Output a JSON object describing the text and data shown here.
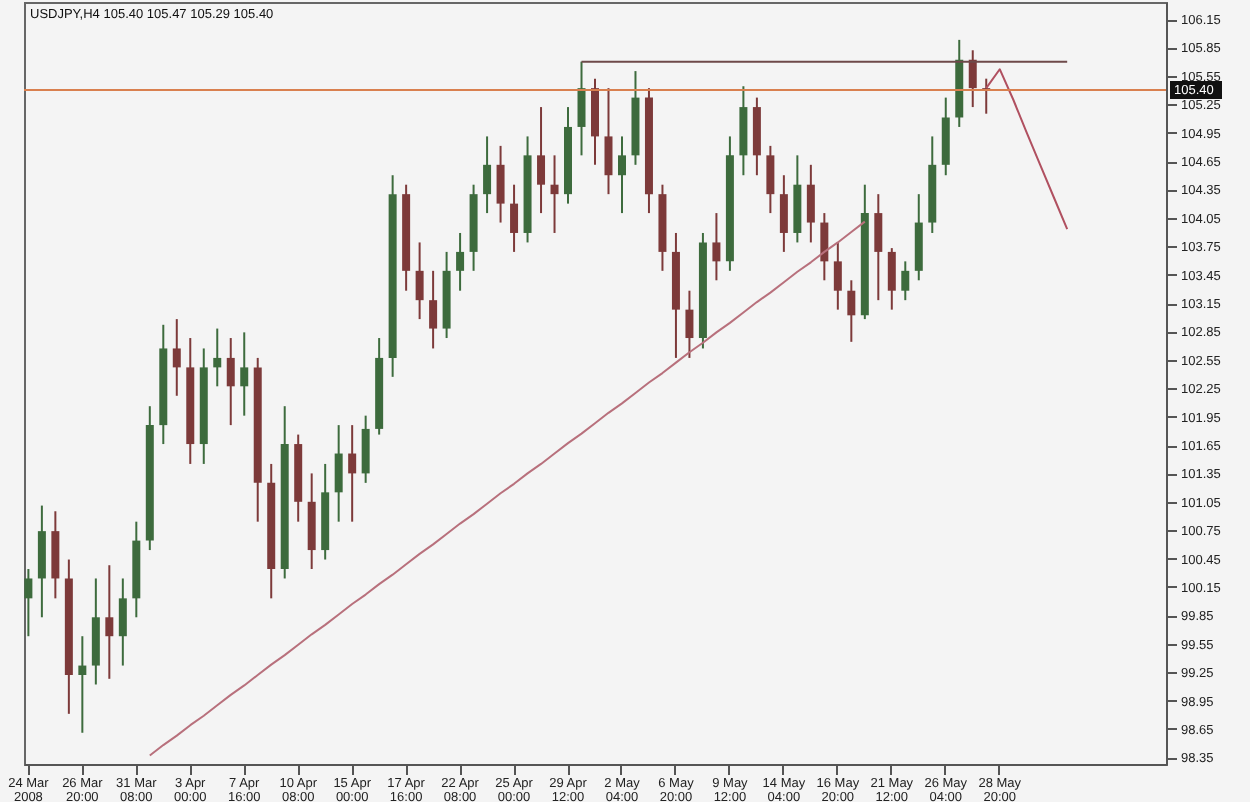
{
  "chart_data": {
    "type": "candlestick",
    "title": "USDJPY,H4  105.40 105.47 105.29 105.40",
    "categories": [
      "24 Mar 2008",
      null,
      null,
      null,
      "26 Mar 20:00",
      null,
      null,
      null,
      "31 Mar 08:00",
      null,
      null,
      null,
      "3 Apr 00:00",
      null,
      null,
      null,
      "7 Apr 16:00",
      null,
      null,
      null,
      "10 Apr 08:00",
      null,
      null,
      null,
      "15 Apr 00:00",
      null,
      null,
      null,
      "17 Apr 16:00",
      null,
      null,
      null,
      "22 Apr 08:00",
      null,
      null,
      null,
      "25 Apr 00:00",
      null,
      null,
      null,
      "29 Apr 12:00",
      null,
      null,
      null,
      "2 May 04:00",
      null,
      null,
      null,
      "6 May 20:00",
      null,
      null,
      null,
      "9 May 12:00",
      null,
      null,
      null,
      "14 May 04:00",
      null,
      null,
      null,
      "16 May 20:00",
      null,
      null,
      null,
      "21 May 12:00",
      null,
      null,
      null,
      "26 May 04:00",
      null,
      null,
      null,
      "28 May 20:00",
      null,
      null,
      null,
      null,
      null,
      null,
      null,
      null,
      null,
      null,
      null,
      null
    ],
    "ohlc": [
      [
        100.03,
        100.34,
        99.63,
        100.24
      ],
      [
        100.24,
        101.01,
        99.83,
        100.74
      ],
      [
        100.74,
        100.95,
        100.03,
        100.24
      ],
      [
        100.24,
        100.44,
        98.81,
        99.22
      ],
      [
        99.22,
        99.63,
        98.61,
        99.32
      ],
      [
        99.32,
        100.24,
        99.12,
        99.83
      ],
      [
        99.83,
        100.38,
        99.18,
        99.63
      ],
      [
        99.63,
        100.24,
        99.32,
        100.03
      ],
      [
        100.03,
        100.84,
        99.83,
        100.64
      ],
      [
        100.64,
        102.06,
        100.54,
        101.86
      ],
      [
        101.86,
        102.92,
        101.66,
        102.67
      ],
      [
        102.67,
        102.98,
        102.17,
        102.47
      ],
      [
        102.47,
        102.78,
        101.45,
        101.66
      ],
      [
        101.66,
        102.67,
        101.45,
        102.47
      ],
      [
        102.47,
        102.88,
        102.27,
        102.57
      ],
      [
        102.57,
        102.78,
        101.86,
        102.27
      ],
      [
        102.27,
        102.84,
        101.96,
        102.47
      ],
      [
        102.47,
        102.57,
        100.84,
        101.25
      ],
      [
        101.25,
        101.45,
        100.03,
        100.34
      ],
      [
        100.34,
        102.06,
        100.24,
        101.66
      ],
      [
        101.66,
        101.76,
        100.84,
        101.05
      ],
      [
        101.05,
        101.35,
        100.34,
        100.54
      ],
      [
        100.54,
        101.45,
        100.44,
        101.15
      ],
      [
        101.15,
        101.86,
        100.84,
        101.56
      ],
      [
        101.56,
        101.86,
        100.84,
        101.35
      ],
      [
        101.35,
        101.96,
        101.25,
        101.82
      ],
      [
        101.82,
        102.78,
        101.76,
        102.57
      ],
      [
        102.57,
        104.5,
        102.37,
        104.3
      ],
      [
        104.3,
        104.4,
        103.28,
        103.49
      ],
      [
        103.49,
        103.79,
        102.98,
        103.18
      ],
      [
        103.18,
        103.49,
        102.67,
        102.88
      ],
      [
        102.88,
        103.69,
        102.78,
        103.49
      ],
      [
        103.49,
        103.89,
        103.28,
        103.69
      ],
      [
        103.69,
        104.4,
        103.49,
        104.3
      ],
      [
        104.3,
        104.91,
        104.1,
        104.61
      ],
      [
        104.61,
        104.81,
        104.0,
        104.2
      ],
      [
        104.2,
        104.4,
        103.69,
        103.89
      ],
      [
        103.89,
        104.91,
        103.79,
        104.71
      ],
      [
        104.71,
        105.22,
        104.1,
        104.4
      ],
      [
        104.4,
        104.71,
        103.89,
        104.3
      ],
      [
        104.3,
        105.22,
        104.2,
        105.01
      ],
      [
        105.01,
        105.7,
        104.71,
        105.42
      ],
      [
        105.42,
        105.52,
        104.61,
        104.91
      ],
      [
        104.91,
        105.42,
        104.3,
        104.5
      ],
      [
        104.5,
        104.91,
        104.1,
        104.71
      ],
      [
        104.71,
        105.6,
        104.61,
        105.32
      ],
      [
        105.32,
        105.42,
        104.1,
        104.3
      ],
      [
        104.3,
        104.4,
        103.49,
        103.69
      ],
      [
        103.69,
        103.89,
        102.57,
        103.08
      ],
      [
        103.08,
        103.28,
        102.57,
        102.78
      ],
      [
        102.78,
        103.89,
        102.67,
        103.79
      ],
      [
        103.79,
        104.1,
        103.39,
        103.59
      ],
      [
        103.59,
        104.91,
        103.49,
        104.71
      ],
      [
        104.71,
        105.44,
        104.5,
        105.22
      ],
      [
        105.22,
        105.32,
        104.5,
        104.71
      ],
      [
        104.71,
        104.81,
        104.1,
        104.3
      ],
      [
        104.3,
        104.5,
        103.69,
        103.89
      ],
      [
        103.89,
        104.71,
        103.79,
        104.4
      ],
      [
        104.4,
        104.61,
        103.79,
        104.0
      ],
      [
        104.0,
        104.1,
        103.39,
        103.59
      ],
      [
        103.59,
        103.79,
        103.08,
        103.28
      ],
      [
        103.28,
        103.39,
        102.74,
        103.02
      ],
      [
        103.02,
        104.4,
        102.98,
        104.1
      ],
      [
        104.1,
        104.3,
        103.18,
        103.69
      ],
      [
        103.69,
        103.73,
        103.08,
        103.28
      ],
      [
        103.28,
        103.59,
        103.18,
        103.49
      ],
      [
        103.49,
        104.3,
        103.39,
        104.0
      ],
      [
        104.0,
        104.91,
        103.89,
        104.61
      ],
      [
        104.61,
        105.32,
        104.5,
        105.11
      ],
      [
        105.11,
        105.93,
        105.01,
        105.72
      ],
      [
        105.72,
        105.82,
        105.22,
        105.42
      ],
      [
        105.42,
        105.52,
        105.15,
        105.4
      ],
      null,
      null,
      null,
      null,
      null,
      null,
      null,
      null,
      null,
      null,
      null,
      null,
      null
    ],
    "colors": [
      "#3d6b3d",
      "#3d6b3d",
      "#7d3a3a",
      "#7d3a3a",
      "#3d6b3d",
      "#3d6b3d",
      "#7d3a3a",
      "#3d6b3d",
      "#3d6b3d",
      "#3d6b3d",
      "#3d6b3d",
      "#7d3a3a",
      "#7d3a3a",
      "#3d6b3d",
      "#3d6b3d",
      "#7d3a3a",
      "#3d6b3d",
      "#7d3a3a",
      "#7d3a3a",
      "#3d6b3d",
      "#7d3a3a",
      "#7d3a3a",
      "#3d6b3d",
      "#3d6b3d",
      "#7d3a3a",
      "#3d6b3d",
      "#3d6b3d",
      "#3d6b3d",
      "#7d3a3a",
      "#7d3a3a",
      "#7d3a3a",
      "#3d6b3d",
      "#3d6b3d",
      "#3d6b3d",
      "#3d6b3d",
      "#7d3a3a",
      "#7d3a3a",
      "#3d6b3d",
      "#7d3a3a",
      "#7d3a3a",
      "#3d6b3d",
      "#3d6b3d",
      "#7d3a3a",
      "#7d3a3a",
      "#3d6b3d",
      "#3d6b3d",
      "#7d3a3a",
      "#7d3a3a",
      "#7d3a3a",
      "#7d3a3a",
      "#3d6b3d",
      "#7d3a3a",
      "#3d6b3d",
      "#3d6b3d",
      "#7d3a3a",
      "#7d3a3a",
      "#7d3a3a",
      "#3d6b3d",
      "#7d3a3a",
      "#7d3a3a",
      "#7d3a3a",
      "#7d3a3a",
      "#3d6b3d",
      "#7d3a3a",
      "#7d3a3a",
      "#3d6b3d",
      "#3d6b3d",
      "#3d6b3d",
      "#3d6b3d",
      "#3d6b3d",
      "#7d3a3a",
      "#7d3a3a",
      null,
      null,
      null,
      null,
      null,
      null,
      null,
      null,
      null,
      null,
      null,
      null,
      null
    ],
    "series": [
      {
        "type": "line",
        "color": "#b8707c",
        "values": [
          null,
          null,
          null,
          null,
          null,
          null,
          null,
          null,
          null,
          98.37,
          98.48,
          98.58,
          98.69,
          98.79,
          98.9,
          99.01,
          99.11,
          99.22,
          99.33,
          99.43,
          99.54,
          99.65,
          99.75,
          99.86,
          99.97,
          100.07,
          100.18,
          100.28,
          100.39,
          100.5,
          100.6,
          100.71,
          100.82,
          100.92,
          101.03,
          101.14,
          101.24,
          101.35,
          101.45,
          101.56,
          101.67,
          101.77,
          101.88,
          101.99,
          102.09,
          102.2,
          102.31,
          102.41,
          102.52,
          102.63,
          102.73,
          102.84,
          102.94,
          103.05,
          103.16,
          103.26,
          103.37,
          103.48,
          103.58,
          103.69,
          103.79,
          103.9,
          104.01,
          null,
          null,
          null,
          null,
          null,
          null,
          null,
          null,
          null,
          null,
          null,
          null,
          null,
          null,
          null,
          null,
          null,
          null,
          null,
          null,
          null,
          null
        ]
      },
      {
        "type": "line",
        "color": "#6e4a4a",
        "values": [
          null,
          null,
          null,
          null,
          null,
          null,
          null,
          null,
          null,
          null,
          null,
          null,
          null,
          null,
          null,
          null,
          null,
          null,
          null,
          null,
          null,
          null,
          null,
          null,
          null,
          null,
          null,
          null,
          null,
          null,
          null,
          null,
          null,
          null,
          null,
          null,
          null,
          null,
          null,
          null,
          null,
          105.7,
          105.7,
          105.7,
          105.7,
          105.7,
          105.7,
          105.7,
          105.7,
          105.7,
          105.7,
          105.7,
          105.7,
          105.7,
          105.7,
          105.7,
          105.7,
          105.7,
          105.7,
          105.7,
          105.7,
          105.7,
          105.7,
          105.7,
          105.7,
          105.7,
          105.7,
          105.7,
          105.7,
          105.7,
          105.7,
          105.7,
          105.7,
          105.7,
          105.7,
          105.7,
          105.7,
          105.7,
          null,
          null,
          null,
          null,
          null,
          null,
          null
        ]
      },
      {
        "type": "line",
        "color": "#b05060",
        "values": [
          null,
          null,
          null,
          null,
          null,
          null,
          null,
          null,
          null,
          null,
          null,
          null,
          null,
          null,
          null,
          null,
          null,
          null,
          null,
          null,
          null,
          null,
          null,
          null,
          null,
          null,
          null,
          null,
          null,
          null,
          null,
          null,
          null,
          null,
          null,
          null,
          null,
          null,
          null,
          null,
          null,
          null,
          null,
          null,
          null,
          null,
          null,
          null,
          null,
          null,
          null,
          null,
          null,
          null,
          null,
          null,
          null,
          null,
          null,
          null,
          null,
          null,
          null,
          null,
          null,
          null,
          null,
          null,
          null,
          null,
          null,
          105.42,
          105.62,
          105.3,
          104.95,
          104.61,
          104.27,
          103.93,
          null,
          null,
          null,
          null,
          null,
          null,
          null
        ]
      }
    ],
    "ref_lines": [
      {
        "axis": "y",
        "value": 105.4,
        "label": "105.40",
        "color": "#d9804f"
      }
    ],
    "ylim": [
      98.28,
      106.33
    ],
    "yticks": [
      106.15,
      105.85,
      105.55,
      105.25,
      104.95,
      104.65,
      104.35,
      104.05,
      103.75,
      103.45,
      103.15,
      102.85,
      102.55,
      102.25,
      101.95,
      101.65,
      101.35,
      101.05,
      100.75,
      100.45,
      100.15,
      99.85,
      99.55,
      99.25,
      98.95,
      98.65,
      98.35
    ]
  }
}
